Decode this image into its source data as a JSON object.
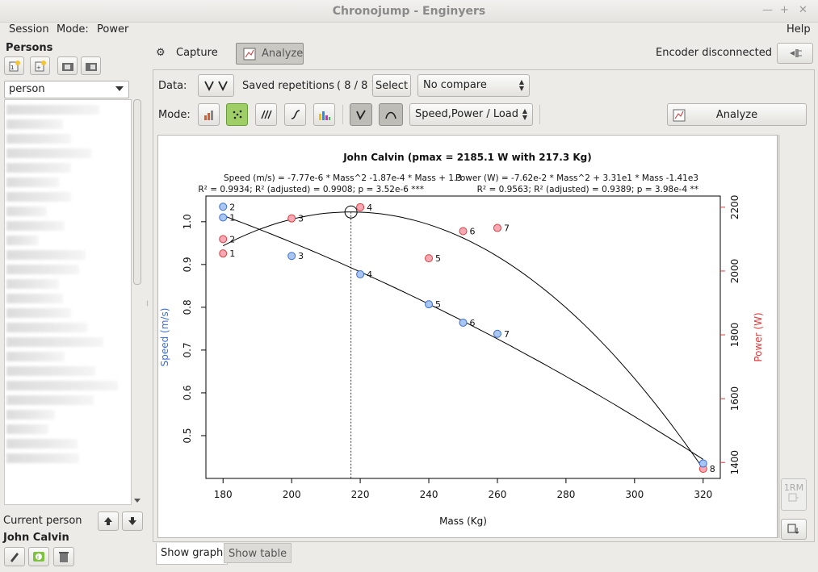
{
  "window": {
    "title": "Chronojump - Enginyers"
  },
  "menu": {
    "session": "Session",
    "mode": "Mode:",
    "mode_value": "Power",
    "help": "Help"
  },
  "sidebar": {
    "persons_title": "Persons",
    "person_select": "person",
    "current_person_label": "Current person",
    "current_person_name": "John Calvin"
  },
  "tabs": {
    "capture": "Capture",
    "analyze": "Analyze"
  },
  "encoder_status": "Encoder disconnected",
  "toolbar": {
    "data_label": "Data:",
    "saved_repetitions_label": "Saved repetitions",
    "saved_count": "( 8 / 8 )",
    "select_button": "Select",
    "compare_value": "No compare",
    "mode_label": "Mode:",
    "analysis_value": "Speed,Power / Load",
    "analyze_button": "Analyze"
  },
  "bottom_tabs": {
    "show_graph": "Show graph",
    "show_table": "Show table"
  },
  "rm_button": "1RM",
  "chart_data": {
    "type": "scatter",
    "title": "John Calvin (pmax = 2185.1 W with 217.3 Kg)",
    "speed_equation": "Speed (m/s) = -7.77e-6 * Mass^2  -1.87e-4 * Mass + 1.3",
    "speed_stats": "R² = 0.9934; R² (adjusted) = 0.9908; p = 3.52e-6 ***",
    "power_equation": "Power (W) = -7.62e-2 * Mass^2 + 3.31e1 * Mass  -1.41e3",
    "power_stats": "R² = 0.9563; R² (adjusted) = 0.9389; p = 3.98e-4 **",
    "xlabel": "Mass (Kg)",
    "ylabel_left": "Speed (m/s)",
    "ylabel_right": "Power (W)",
    "xlim": [
      175,
      325
    ],
    "xticks": [
      180,
      200,
      220,
      240,
      260,
      280,
      300,
      320
    ],
    "ylim_speed": [
      0.4,
      1.06
    ],
    "yticks_speed": [
      0.5,
      0.6,
      0.7,
      0.8,
      0.9,
      1.0
    ],
    "ylim_power": [
      1350,
      2235
    ],
    "yticks_power": [
      1400,
      1600,
      1800,
      2000,
      2200
    ],
    "pmax_mass": 217.3,
    "pmax_power": 2185.1,
    "speed_color": "#3a6fd8",
    "power_color": "#e03b3b",
    "speed_series": [
      {
        "label": "1",
        "mass": 180,
        "speed": 1.01
      },
      {
        "label": "2",
        "mass": 180,
        "speed": 1.035
      },
      {
        "label": "3",
        "mass": 200,
        "speed": 0.92
      },
      {
        "label": "4",
        "mass": 220,
        "speed": 0.877
      },
      {
        "label": "5",
        "mass": 240,
        "speed": 0.807
      },
      {
        "label": "6",
        "mass": 250,
        "speed": 0.764
      },
      {
        "label": "7",
        "mass": 260,
        "speed": 0.738
      },
      {
        "label": "8",
        "mass": 320,
        "speed": 0.435
      }
    ],
    "power_series": [
      {
        "label": "1",
        "mass": 180,
        "power": 2055
      },
      {
        "label": "2",
        "mass": 180,
        "power": 2100
      },
      {
        "label": "3",
        "mass": 200,
        "power": 2165
      },
      {
        "label": "4",
        "mass": 220,
        "power": 2200
      },
      {
        "label": "5",
        "mass": 240,
        "power": 2040
      },
      {
        "label": "6",
        "mass": 250,
        "power": 2125
      },
      {
        "label": "7",
        "mass": 260,
        "power": 2135
      },
      {
        "label": "8",
        "mass": 320,
        "power": 1380
      }
    ]
  }
}
